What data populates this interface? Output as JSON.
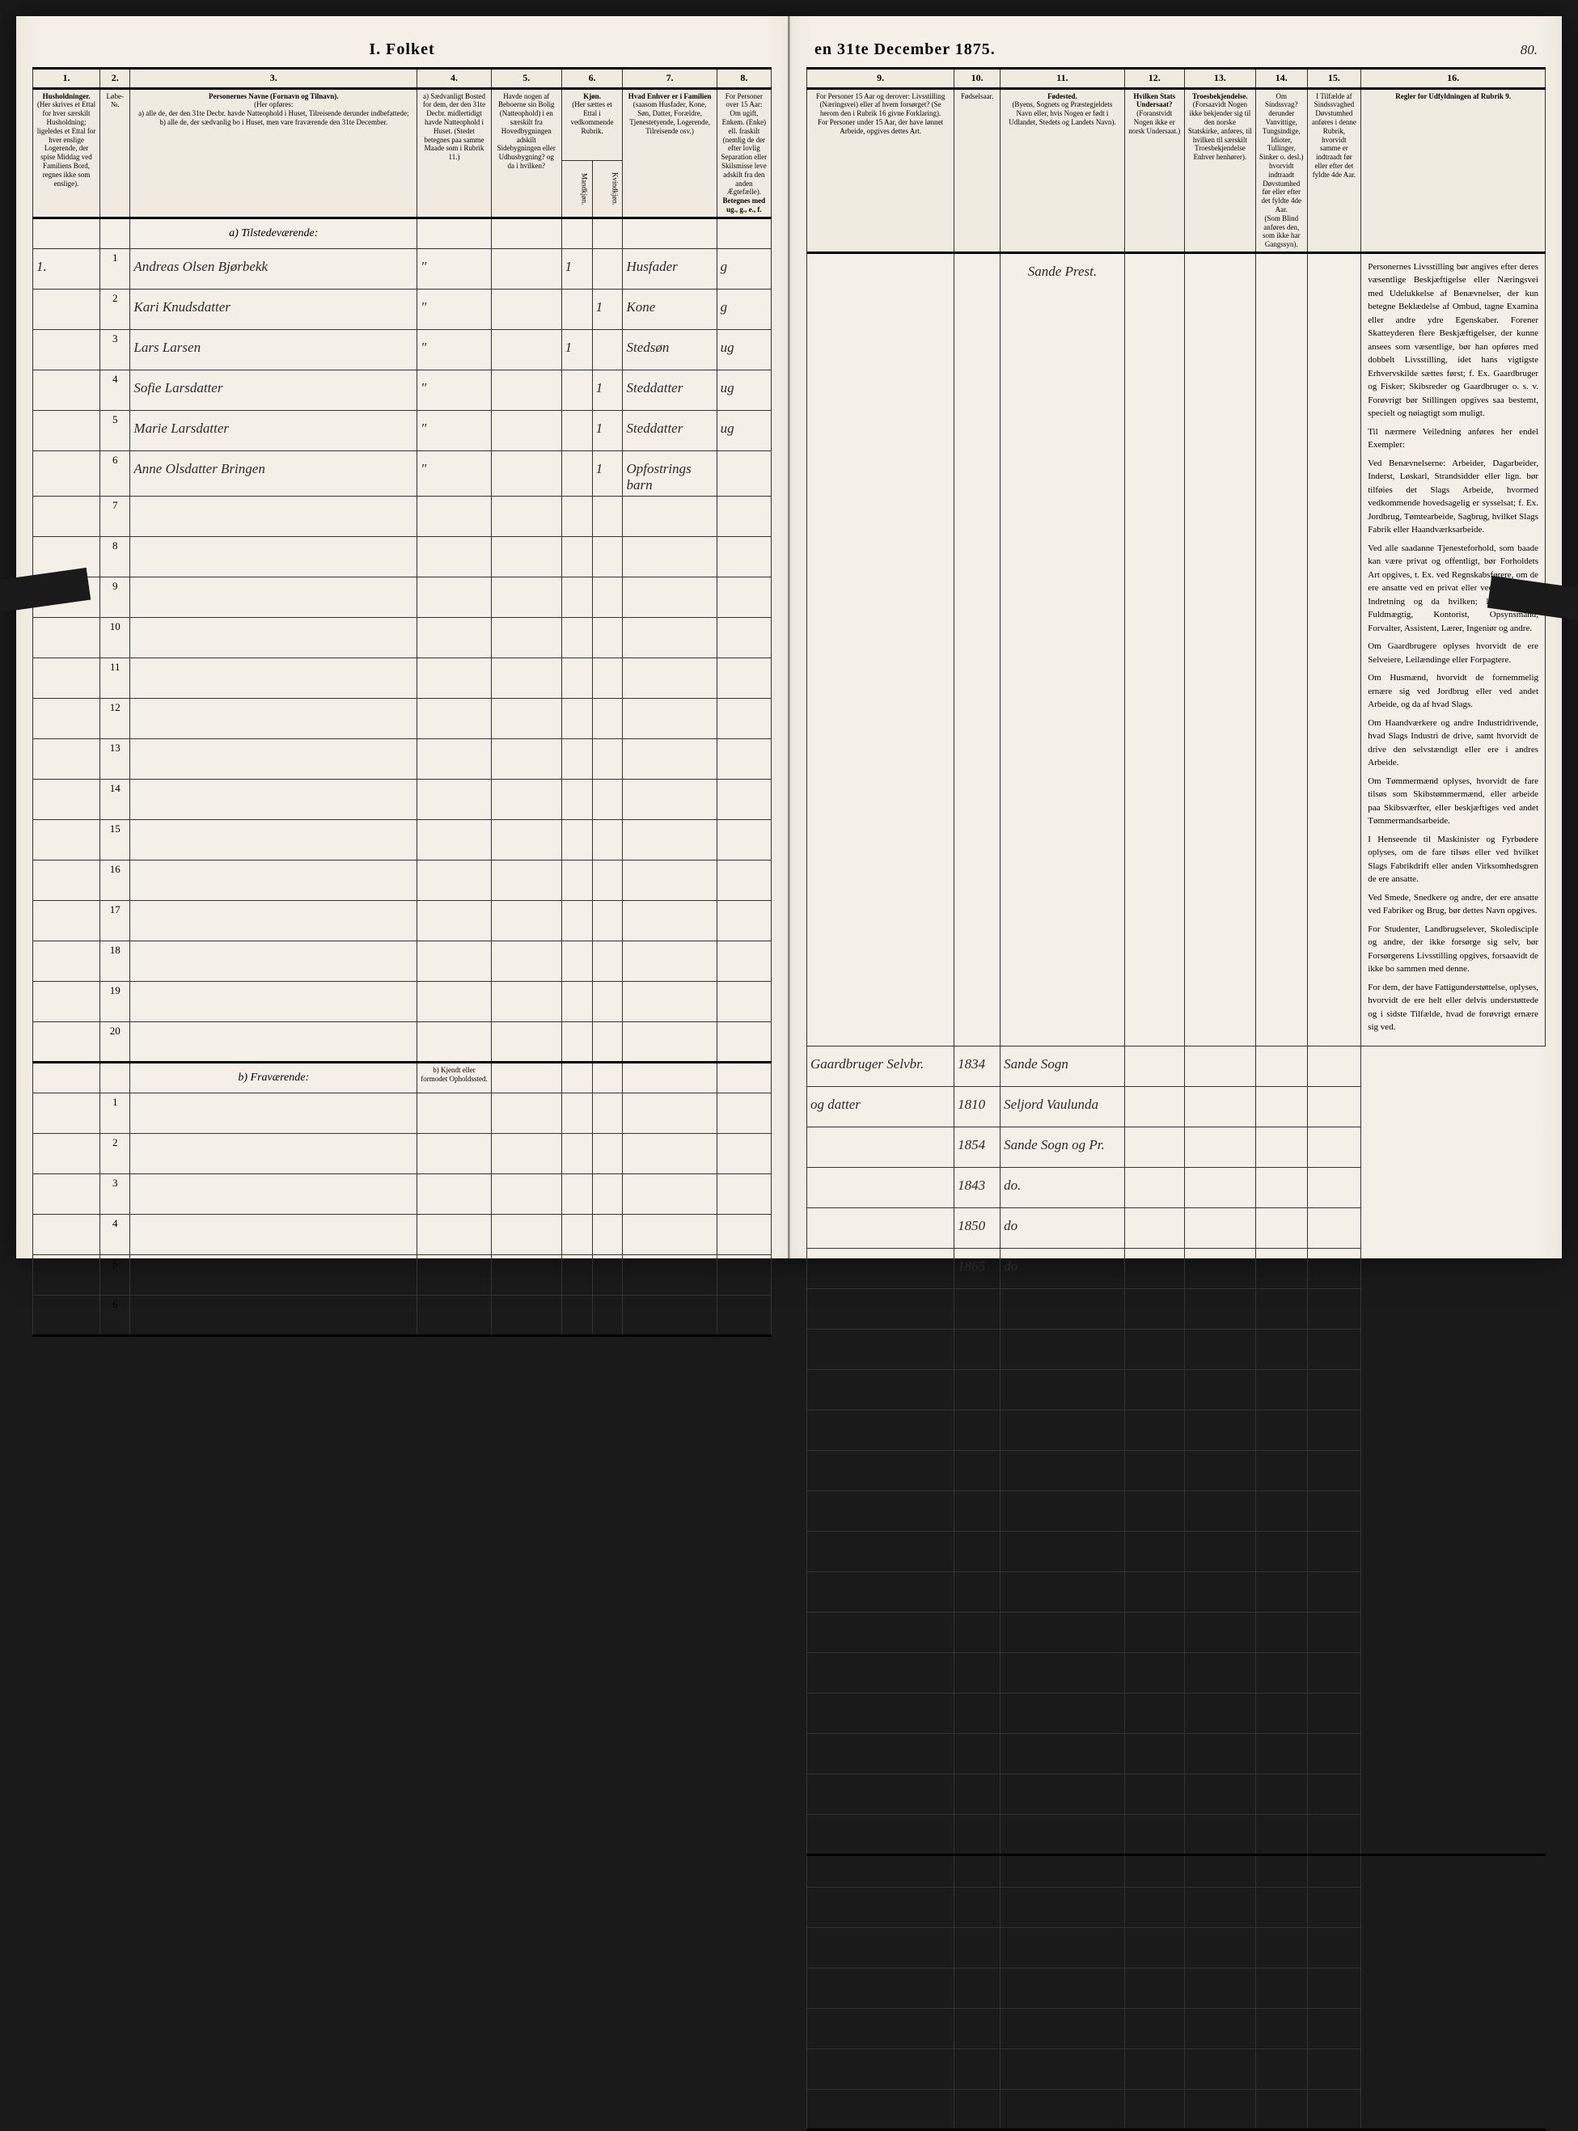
{
  "pageNumber": "80.",
  "titleLeft": "I. Folket",
  "titleRight": "en 31te December 1875.",
  "columnNumbers": [
    "1.",
    "2.",
    "3.",
    "4.",
    "5.",
    "6.",
    "7.",
    "8.",
    "9.",
    "10.",
    "11.",
    "12.",
    "13.",
    "14.",
    "15.",
    "16."
  ],
  "headers": {
    "col1": "Husholdninger.",
    "col1sub": "(Her skrives et Ettal for hver særskilt Husholdning; ligeledes et Ettal for hver enslige Logerende, der spise Middag ved Familiens Bord, regnes ikke som enslige).",
    "col2sub": "Løbe-№.",
    "col3": "Personernes Navne (Fornavn og Tilnavn).",
    "col3sub": "(Her opføres:\na) alle de, der den 31te Decbr. havde Natteophold i Huset, Tilreisende derunder indbefattede;\nb) alle de, der sædvanlig bo i Huset, men vare fraværende den 31te December.",
    "col4": "a) Sædvanligt Bosted for dem, der den 31te Decbr. midlertidigt havde Natteophold i Huset. (Stedet betegnes paa samme Maade som i Rubrik 11.)",
    "col5": "Havde nogen af Beboerne sin Bolig (Natteophold) i en særskilt fra Hovedbygningen adskilt Sidebygningen eller Udhusbygning? og da i hvilken?",
    "col6": "Kjøn.",
    "col6sub": "(Her sættes et Ettal i vedkommende Rubrik.",
    "col6a": "Mandkjøn.",
    "col6b": "Kvindkjøn.",
    "col7": "Hvad Enhver er i Familien",
    "col7sub": "(saasom Husfader, Kone, Søn, Datter, Forældre, Tjenestetyende, Logerende, Tilreisende osv.)",
    "col8": "For Personer over 15 Aar: Om ugift, Enkem. (Enke) ell. fraskilt (nemlig de der efter lovlig Separation eller Skilsmisse leve adskilt fra den anden Ægtefælle).",
    "col8sub": "Betegnes med ug., g., e., f.",
    "col9": "For Personer 15 Aar og derover: Livsstilling (Næringsvei) eller af hvem forsørget? (Se herom den i Rubrik 16 givne Forklaring).",
    "col9sub": "For Personer under 15 Aar, der have lønnet Arbeide, opgives dettes Art.",
    "col10": "Fødselsaar.",
    "col11": "Fødested.",
    "col11sub": "(Byens, Sognets og Præstegjeldets Navn eller, hvis Nogen er født i Udlandet, Stedets og Landets Navn).",
    "col12": "Hvilken Stats Undersaat?",
    "col12sub": "(Foranstvidt Nogen ikke er norsk Undersaat.)",
    "col13": "Troesbekjendelse.",
    "col13sub": "(Forsaavidt Nogen ikke bekjender sig til den norske Statskirke, anføres, til hvilken til særskilt Troesbekjendelse Enhver henhører).",
    "col14": "Om Sindssvag? derunder Vanvittige, Tungsindige, Idioter, Tullinger, Sinker o. desl.) hvorvidt indtraadt Døvstumhed før eller efter det fyldte 4de Aar.",
    "col14sub": "(Som Blind anføres den, som ikke har Gangssyn).",
    "col15": "I Tilfælde af Sindssvaghed Døvstumhed anføres i denne Rubrik, hvorvidt samme er indtraadt før eller efter det fyldte 4de Aar.",
    "col16": "Regler for Udfyldningen af Rubrik 9."
  },
  "sectionA": "a) Tilstedeværende:",
  "sectionB": "b) Fraværende:",
  "sectionBcol4": "b) Kjendt eller formodet Opholdssted.",
  "parishHeader": "Sande Prest.",
  "rows": [
    {
      "hh": "1.",
      "num": "1",
      "name": "Andreas Olsen Bjørbekk",
      "fam": "Husfader",
      "mar": "g",
      "occ": "Gaardbruger Selvbr.",
      "year": "1834",
      "place": "Sande Sogn"
    },
    {
      "hh": "",
      "num": "2",
      "name": "Kari Knudsdatter",
      "fam": "Kone",
      "mar": "g",
      "occ": "og datter",
      "year": "1810",
      "place": "Seljord Vaulunda"
    },
    {
      "hh": "",
      "num": "3",
      "name": "Lars Larsen",
      "fam": "Stedsøn",
      "mar": "ug",
      "occ": "",
      "year": "1854",
      "place": "Sande Sogn og Pr."
    },
    {
      "hh": "",
      "num": "4",
      "name": "Sofie Larsdatter",
      "fam": "Steddatter",
      "mar": "ug",
      "occ": "",
      "year": "1843",
      "place": "do."
    },
    {
      "hh": "",
      "num": "5",
      "name": "Marie Larsdatter",
      "fam": "Steddatter",
      "mar": "ug",
      "occ": "",
      "year": "1850",
      "place": "do"
    },
    {
      "hh": "",
      "num": "6",
      "name": "Anne Olsdatter Bringen",
      "fam": "Opfostrings barn",
      "mar": "",
      "occ": "",
      "year": "1865",
      "place": "do"
    }
  ],
  "emptyRowsA": [
    "7",
    "8",
    "9",
    "10",
    "11",
    "12",
    "13",
    "14",
    "15",
    "16",
    "17",
    "18",
    "19",
    "20"
  ],
  "emptyRowsB": [
    "1",
    "2",
    "3",
    "4",
    "5",
    "6"
  ],
  "rulesText": [
    "Personernes Livsstilling bør angives efter deres væsentlige Beskjæftigelse eller Næringsvei med Udelukkelse af Benævnelser, der kun betegne Beklædelse af Ombud, tagne Examina eller andre ydre Egenskaber. Forener Skatteyderen flere Beskjæftigelser, der kunne ansees som væsentlige, bør han opføres med dobbelt Livsstilling, idet hans vigtigste Erhvervskilde sættes først; f. Ex. Gaardbruger og Fisker; Skibsreder og Gaardbruger o. s. v. Forøvrigt bør Stillingen opgives saa bestemt, specielt og nøiagtigt som muligt.",
    "Til nærmere Veiledning anføres her endel Exempler:",
    "Ved Benævnelserne: Arbeider, Dagarbeider, Inderst, Løskarl, Strandsidder eller lign. bør tilføies det Slags Arbeide, hvormed vedkommende hovedsagelig er sysselsat; f. Ex. Jordbrug, Tømtearbeide, Sagbrug, hvilket Slags Fabrik eller Haandværksarbeide.",
    "Ved alle saadanne Tjenesteforhold, som baade kan være privat og offentligt, bør Forholdets Art opgives, t. Ex. ved Regnskabsførere, om de ere ansatte ved en privat eller ved en offentlig Indretning og da hvilken; lignende ved Fuldmægtig, Kontorist, Opsynsmand, Forvalter, Assistent, Lærer, Ingeniør og andre.",
    "Om Gaardbrugere oplyses hvorvidt de ere Selveiere, Leilændinge eller Forpagtere.",
    "Om Husmænd, hvorvidt de fornemmelig ernære sig ved Jordbrug eller ved andet Arbeide, og da af hvad Slags.",
    "Om Haandværkere og andre Industridrivende, hvad Slags Industri de drive, samt hvorvidt de drive den selvstændigt eller ere i andres Arbeide.",
    "Om Tømmermænd oplyses, hvorvidt de fare tilsøs som Skibstømmermænd, eller arbeide paa Skibsværfter, eller beskjæftiges ved andet Tømmermandsarbeide.",
    "I Henseende til Maskinister og Fyrbødere oplyses, om de fare tilsøs eller ved hvilket Slags Fabrikdrift eller anden Virksomhedsgren de ere ansatte.",
    "Ved Smede, Snedkere og andre, der ere ansatte ved Fabriker og Brug, bør dettes Navn opgives.",
    "For Studenter, Landbrugselever, Skoledisciple og andre, der ikke forsørge sig selv, bør Forsørgerens Livsstilling opgives, forsaavidt de ikke bo sammen med denne.",
    "For dem, der have Fattigunderstøttelse, oplyses, hvorvidt de ere helt eller delvis understøttede og i sidste Tilfælde, hvad de forøvrigt ernære sig ved."
  ]
}
